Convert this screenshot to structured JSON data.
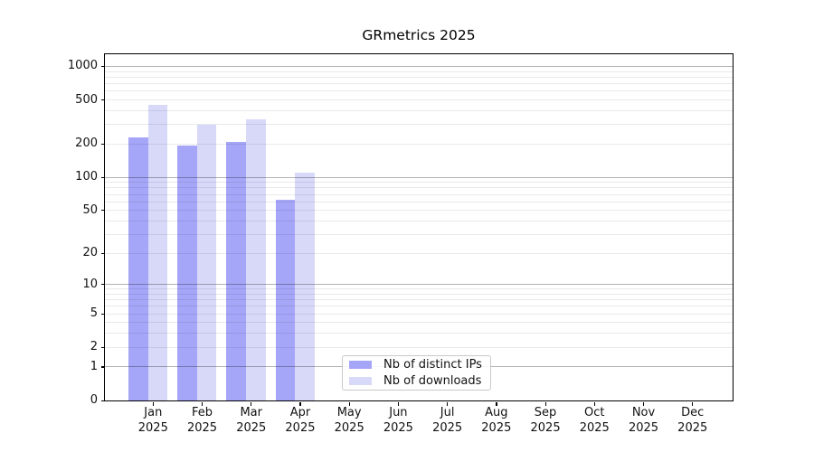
{
  "figure": {
    "background": "#ffffff"
  },
  "chart_data": {
    "type": "bar",
    "title": "GRmetrics 2025",
    "categories": [
      "Jan",
      "Feb",
      "Mar",
      "Apr",
      "May",
      "Jun",
      "Jul",
      "Aug",
      "Sep",
      "Oct",
      "Nov",
      "Dec"
    ],
    "category_year": "2025",
    "series": [
      {
        "name": "Nb of distinct IPs",
        "color": "#a6a6f8",
        "values": [
          228,
          192,
          207,
          62,
          null,
          null,
          null,
          null,
          null,
          null,
          null,
          null
        ]
      },
      {
        "name": "Nb of downloads",
        "color": "#d8d8f9",
        "values": [
          445,
          298,
          332,
          110,
          null,
          null,
          null,
          null,
          null,
          null,
          null,
          null
        ]
      }
    ],
    "xlabel": "",
    "ylabel": "",
    "yscale": "log1p",
    "ylim": [
      0,
      1275
    ],
    "yticks": [
      0,
      1,
      2,
      5,
      10,
      20,
      50,
      100,
      200,
      500,
      1000
    ],
    "major_gridline_values": [
      1,
      10,
      100,
      1000
    ],
    "minor_gridline_values": [
      2,
      3,
      4,
      5,
      6,
      7,
      8,
      9,
      20,
      30,
      40,
      50,
      60,
      70,
      80,
      90,
      200,
      300,
      400,
      500,
      600,
      700,
      800,
      900
    ],
    "grid": true,
    "legend_position": "lower center-left inside plot",
    "colors": {
      "axis_line": "#000000",
      "major_grid": "#b3b3b3",
      "minor_grid": "#e9e9e9",
      "text": "#111111"
    }
  }
}
